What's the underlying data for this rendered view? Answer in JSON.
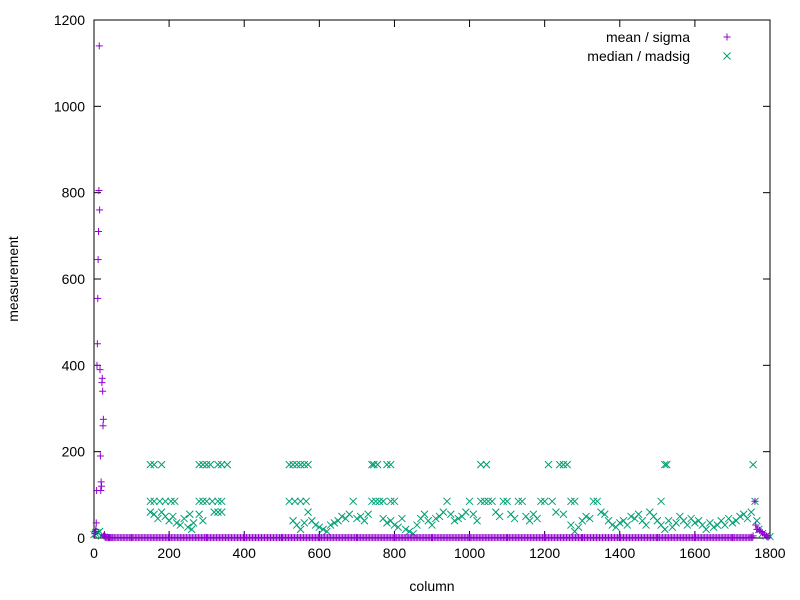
{
  "chart_data": {
    "type": "scatter",
    "title": "",
    "xlabel": "column",
    "ylabel": "measurement",
    "xlim": [
      0,
      1800
    ],
    "ylim": [
      0,
      1200
    ],
    "xticks": [
      0,
      200,
      400,
      600,
      800,
      1000,
      1200,
      1400,
      1600,
      1800
    ],
    "yticks": [
      0,
      200,
      400,
      600,
      800,
      1000,
      1200
    ],
    "grid": false,
    "legend": "top-right",
    "series": [
      {
        "name": "mean / sigma",
        "marker": "plus",
        "color": "#9400d3",
        "points": [
          [
            2,
            10
          ],
          [
            4,
            15
          ],
          [
            5,
            20
          ],
          [
            6,
            35
          ],
          [
            7,
            110
          ],
          [
            8,
            400
          ],
          [
            9,
            450
          ],
          [
            10,
            555
          ],
          [
            11,
            645
          ],
          [
            12,
            710
          ],
          [
            13,
            805
          ],
          [
            14,
            1140
          ],
          [
            15,
            760
          ],
          [
            16,
            390
          ],
          [
            17,
            190
          ],
          [
            18,
            110
          ],
          [
            19,
            130
          ],
          [
            20,
            120
          ],
          [
            21,
            360
          ],
          [
            22,
            370
          ],
          [
            23,
            340
          ],
          [
            24,
            260
          ],
          [
            25,
            275
          ],
          [
            26,
            5
          ],
          [
            28,
            8
          ],
          [
            30,
            3
          ],
          [
            35,
            2
          ],
          [
            40,
            1
          ],
          [
            45,
            1
          ],
          [
            50,
            1
          ],
          [
            100,
            1
          ],
          [
            200,
            1
          ],
          [
            300,
            1
          ],
          [
            400,
            1
          ],
          [
            500,
            1
          ],
          [
            600,
            1
          ],
          [
            700,
            1
          ],
          [
            800,
            1
          ],
          [
            900,
            1
          ],
          [
            1000,
            1
          ],
          [
            1100,
            1
          ],
          [
            1200,
            1
          ],
          [
            1300,
            1
          ],
          [
            1400,
            1
          ],
          [
            1500,
            1
          ],
          [
            1600,
            1
          ],
          [
            1700,
            1
          ],
          [
            1750,
            2
          ],
          [
            1755,
            5
          ],
          [
            1760,
            85
          ],
          [
            1762,
            30
          ],
          [
            1765,
            20
          ],
          [
            1768,
            20
          ],
          [
            1772,
            18
          ],
          [
            1776,
            15
          ],
          [
            1780,
            12
          ],
          [
            1785,
            8
          ],
          [
            1790,
            5
          ],
          [
            1795,
            2
          ]
        ]
      },
      {
        "name": "median / madsig",
        "marker": "x",
        "color": "#009e73",
        "points": [
          [
            0,
            8
          ],
          [
            5,
            10
          ],
          [
            10,
            12
          ],
          [
            15,
            15
          ],
          [
            20,
            5
          ],
          [
            150,
            170
          ],
          [
            160,
            170
          ],
          [
            180,
            170
          ],
          [
            150,
            85
          ],
          [
            160,
            85
          ],
          [
            175,
            85
          ],
          [
            190,
            85
          ],
          [
            205,
            85
          ],
          [
            215,
            85
          ],
          [
            150,
            60
          ],
          [
            160,
            55
          ],
          [
            170,
            45
          ],
          [
            180,
            60
          ],
          [
            190,
            50
          ],
          [
            200,
            40
          ],
          [
            210,
            50
          ],
          [
            220,
            35
          ],
          [
            230,
            30
          ],
          [
            240,
            45
          ],
          [
            250,
            25
          ],
          [
            255,
            55
          ],
          [
            260,
            20
          ],
          [
            265,
            35
          ],
          [
            280,
            170
          ],
          [
            290,
            170
          ],
          [
            300,
            170
          ],
          [
            310,
            170
          ],
          [
            330,
            170
          ],
          [
            340,
            170
          ],
          [
            355,
            170
          ],
          [
            280,
            85
          ],
          [
            290,
            85
          ],
          [
            300,
            85
          ],
          [
            315,
            85
          ],
          [
            330,
            85
          ],
          [
            340,
            85
          ],
          [
            280,
            55
          ],
          [
            320,
            60
          ],
          [
            330,
            60
          ],
          [
            340,
            60
          ],
          [
            290,
            40
          ],
          [
            520,
            170
          ],
          [
            530,
            170
          ],
          [
            540,
            170
          ],
          [
            550,
            170
          ],
          [
            560,
            170
          ],
          [
            570,
            170
          ],
          [
            520,
            85
          ],
          [
            535,
            85
          ],
          [
            550,
            85
          ],
          [
            565,
            85
          ],
          [
            530,
            40
          ],
          [
            540,
            30
          ],
          [
            550,
            20
          ],
          [
            560,
            35
          ],
          [
            570,
            60
          ],
          [
            580,
            40
          ],
          [
            590,
            30
          ],
          [
            600,
            25
          ],
          [
            610,
            20
          ],
          [
            620,
            15
          ],
          [
            630,
            30
          ],
          [
            640,
            35
          ],
          [
            650,
            40
          ],
          [
            660,
            50
          ],
          [
            670,
            45
          ],
          [
            680,
            55
          ],
          [
            690,
            85
          ],
          [
            700,
            45
          ],
          [
            710,
            50
          ],
          [
            720,
            40
          ],
          [
            730,
            55
          ],
          [
            740,
            170
          ],
          [
            745,
            170
          ],
          [
            755,
            170
          ],
          [
            740,
            85
          ],
          [
            750,
            85
          ],
          [
            760,
            85
          ],
          [
            770,
            85
          ],
          [
            780,
            170
          ],
          [
            790,
            170
          ],
          [
            790,
            85
          ],
          [
            800,
            85
          ],
          [
            770,
            45
          ],
          [
            780,
            35
          ],
          [
            790,
            40
          ],
          [
            800,
            30
          ],
          [
            810,
            25
          ],
          [
            820,
            45
          ],
          [
            830,
            20
          ],
          [
            840,
            15
          ],
          [
            850,
            10
          ],
          [
            860,
            30
          ],
          [
            870,
            45
          ],
          [
            880,
            55
          ],
          [
            890,
            40
          ],
          [
            900,
            30
          ],
          [
            910,
            45
          ],
          [
            920,
            50
          ],
          [
            930,
            60
          ],
          [
            940,
            85
          ],
          [
            950,
            55
          ],
          [
            960,
            40
          ],
          [
            970,
            45
          ],
          [
            980,
            50
          ],
          [
            990,
            60
          ],
          [
            1000,
            85
          ],
          [
            1010,
            55
          ],
          [
            1020,
            40
          ],
          [
            1030,
            170
          ],
          [
            1045,
            170
          ],
          [
            1030,
            85
          ],
          [
            1040,
            85
          ],
          [
            1050,
            85
          ],
          [
            1060,
            85
          ],
          [
            1070,
            60
          ],
          [
            1080,
            50
          ],
          [
            1090,
            85
          ],
          [
            1100,
            85
          ],
          [
            1110,
            55
          ],
          [
            1120,
            45
          ],
          [
            1130,
            85
          ],
          [
            1140,
            85
          ],
          [
            1150,
            50
          ],
          [
            1160,
            40
          ],
          [
            1170,
            55
          ],
          [
            1180,
            45
          ],
          [
            1190,
            85
          ],
          [
            1200,
            85
          ],
          [
            1210,
            170
          ],
          [
            1220,
            85
          ],
          [
            1230,
            60
          ],
          [
            1240,
            170
          ],
          [
            1250,
            170
          ],
          [
            1260,
            170
          ],
          [
            1270,
            85
          ],
          [
            1280,
            85
          ],
          [
            1250,
            55
          ],
          [
            1270,
            30
          ],
          [
            1280,
            15
          ],
          [
            1290,
            25
          ],
          [
            1300,
            40
          ],
          [
            1310,
            50
          ],
          [
            1320,
            45
          ],
          [
            1330,
            85
          ],
          [
            1340,
            85
          ],
          [
            1350,
            60
          ],
          [
            1360,
            55
          ],
          [
            1370,
            40
          ],
          [
            1380,
            30
          ],
          [
            1390,
            25
          ],
          [
            1400,
            35
          ],
          [
            1410,
            40
          ],
          [
            1420,
            30
          ],
          [
            1430,
            50
          ],
          [
            1440,
            45
          ],
          [
            1450,
            55
          ],
          [
            1460,
            40
          ],
          [
            1470,
            30
          ],
          [
            1480,
            60
          ],
          [
            1490,
            50
          ],
          [
            1500,
            40
          ],
          [
            1510,
            85
          ],
          [
            1520,
            170
          ],
          [
            1525,
            170
          ],
          [
            1510,
            30
          ],
          [
            1520,
            20
          ],
          [
            1530,
            40
          ],
          [
            1540,
            25
          ],
          [
            1550,
            35
          ],
          [
            1560,
            50
          ],
          [
            1570,
            40
          ],
          [
            1580,
            30
          ],
          [
            1590,
            45
          ],
          [
            1600,
            35
          ],
          [
            1610,
            40
          ],
          [
            1620,
            30
          ],
          [
            1630,
            20
          ],
          [
            1640,
            35
          ],
          [
            1650,
            25
          ],
          [
            1660,
            30
          ],
          [
            1670,
            40
          ],
          [
            1680,
            30
          ],
          [
            1690,
            45
          ],
          [
            1700,
            35
          ],
          [
            1710,
            40
          ],
          [
            1720,
            50
          ],
          [
            1730,
            55
          ],
          [
            1740,
            45
          ],
          [
            1750,
            60
          ],
          [
            1755,
            170
          ],
          [
            1760,
            85
          ],
          [
            1765,
            40
          ],
          [
            1770,
            20
          ],
          [
            1780,
            10
          ],
          [
            1790,
            5
          ],
          [
            1800,
            3
          ]
        ]
      }
    ]
  }
}
